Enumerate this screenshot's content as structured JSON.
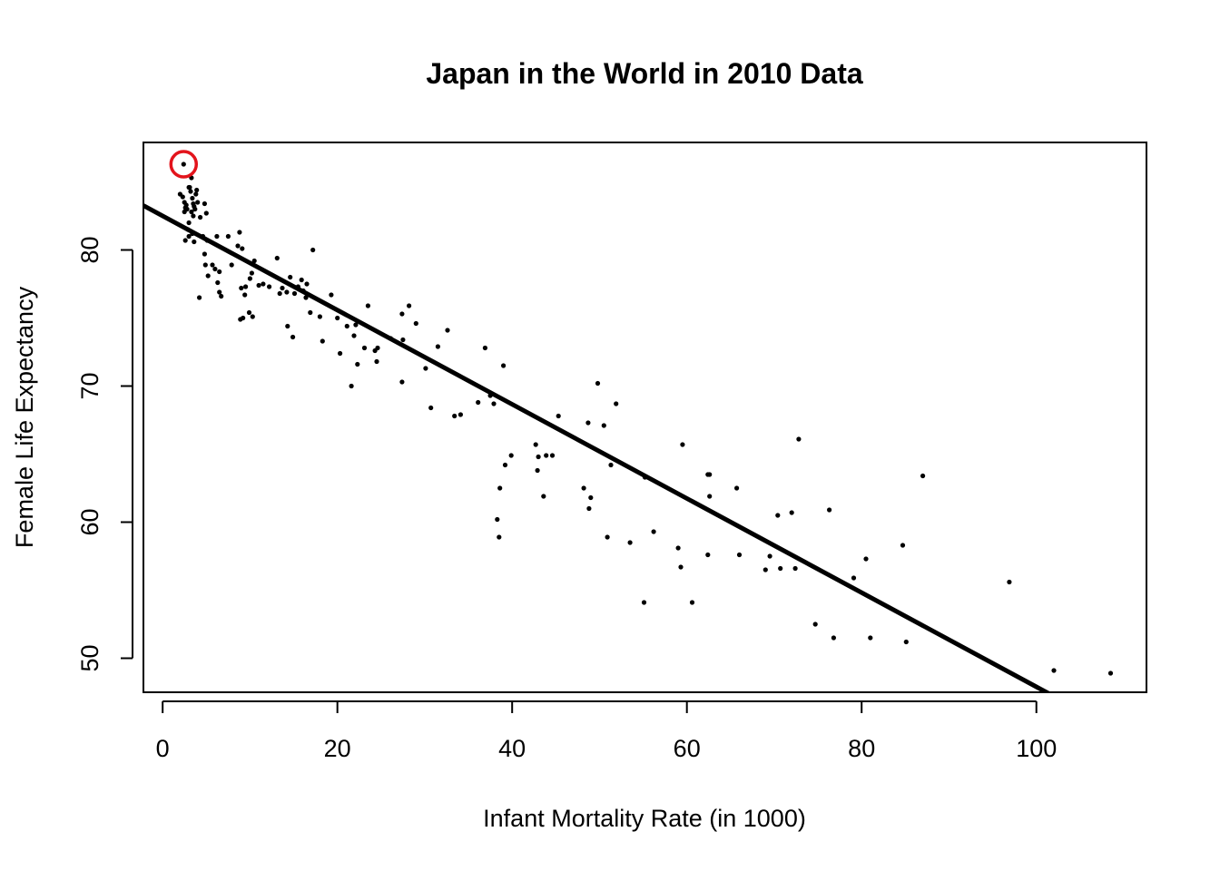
{
  "chart_data": {
    "type": "scatter",
    "title": "Japan in the World in 2010 Data",
    "xlabel": "Infant Mortality Rate (in 1000)",
    "ylabel": "Female Life Expectancy",
    "xlim": [
      -2.2,
      112.6
    ],
    "ylim": [
      47.5,
      87.9
    ],
    "xticks": [
      0,
      20,
      40,
      60,
      80,
      100
    ],
    "yticks": [
      50,
      60,
      70,
      80
    ],
    "grid": false,
    "legend": "none",
    "point_color": "#000000",
    "line_color": "#000000",
    "highlight_color": "#e3141c",
    "highlight": {
      "x": 2.4,
      "y": 86.3
    },
    "regression_line": {
      "intercept": 82.5,
      "slope": -0.346
    },
    "points": [
      [
        2.4,
        86.3
      ],
      [
        2.0,
        84.1
      ],
      [
        2.3,
        83.9
      ],
      [
        2.5,
        83.5
      ],
      [
        2.6,
        83.1
      ],
      [
        2.7,
        83.3
      ],
      [
        2.5,
        82.8
      ],
      [
        2.8,
        83.0
      ],
      [
        3.0,
        84.6
      ],
      [
        3.1,
        84.6
      ],
      [
        3.3,
        85.3
      ],
      [
        3.2,
        84.3
      ],
      [
        3.4,
        83.8
      ],
      [
        3.5,
        83.4
      ],
      [
        3.6,
        83.2
      ],
      [
        3.7,
        83.0
      ],
      [
        3.3,
        82.8
      ],
      [
        3.8,
        84.1
      ],
      [
        3.9,
        84.4
      ],
      [
        3.5,
        82.5
      ],
      [
        3.0,
        82.0
      ],
      [
        2.9,
        81.5
      ],
      [
        3.0,
        81.0
      ],
      [
        3.4,
        81.2
      ],
      [
        3.6,
        80.6
      ],
      [
        2.6,
        80.7
      ],
      [
        4.0,
        83.5
      ],
      [
        4.3,
        82.4
      ],
      [
        4.8,
        83.4
      ],
      [
        5.0,
        82.7
      ],
      [
        4.6,
        81.0
      ],
      [
        5.1,
        80.7
      ],
      [
        4.8,
        79.7
      ],
      [
        4.9,
        78.9
      ],
      [
        5.2,
        78.1
      ],
      [
        5.7,
        78.9
      ],
      [
        6.0,
        78.6
      ],
      [
        6.2,
        81.0
      ],
      [
        6.5,
        78.4
      ],
      [
        6.3,
        77.6
      ],
      [
        6.5,
        76.9
      ],
      [
        6.7,
        76.6
      ],
      [
        4.2,
        76.5
      ],
      [
        7.5,
        81.0
      ],
      [
        7.9,
        78.9
      ],
      [
        8.8,
        81.3
      ],
      [
        8.6,
        80.3
      ],
      [
        9.1,
        80.1
      ],
      [
        9.0,
        77.2
      ],
      [
        9.5,
        77.3
      ],
      [
        9.4,
        76.7
      ],
      [
        8.9,
        74.9
      ],
      [
        9.2,
        75.0
      ],
      [
        10.0,
        77.9
      ],
      [
        10.2,
        78.3
      ],
      [
        10.5,
        79.2
      ],
      [
        9.9,
        75.4
      ],
      [
        10.3,
        75.1
      ],
      [
        11.0,
        77.4
      ],
      [
        11.5,
        77.5
      ],
      [
        12.2,
        77.3
      ],
      [
        13.1,
        79.4
      ],
      [
        13.4,
        76.8
      ],
      [
        13.7,
        77.2
      ],
      [
        14.2,
        76.9
      ],
      [
        14.6,
        78.0
      ],
      [
        14.3,
        74.4
      ],
      [
        14.9,
        73.6
      ],
      [
        15.1,
        76.8
      ],
      [
        15.5,
        77.3
      ],
      [
        15.9,
        77.8
      ],
      [
        16.1,
        77.0
      ],
      [
        16.5,
        77.5
      ],
      [
        16.4,
        76.5
      ],
      [
        16.9,
        75.4
      ],
      [
        17.2,
        80.0
      ],
      [
        18.0,
        75.1
      ],
      [
        18.3,
        73.3
      ],
      [
        19.3,
        76.7
      ],
      [
        20.0,
        75.0
      ],
      [
        20.3,
        72.4
      ],
      [
        21.1,
        74.4
      ],
      [
        21.9,
        73.7
      ],
      [
        22.1,
        74.5
      ],
      [
        22.3,
        71.6
      ],
      [
        21.6,
        70.0
      ],
      [
        23.1,
        72.8
      ],
      [
        23.5,
        75.9
      ],
      [
        24.3,
        72.6
      ],
      [
        24.6,
        72.8
      ],
      [
        24.5,
        71.8
      ],
      [
        26.1,
        73.5
      ],
      [
        27.4,
        75.3
      ],
      [
        27.5,
        73.4
      ],
      [
        27.4,
        70.3
      ],
      [
        28.2,
        75.9
      ],
      [
        29.0,
        74.6
      ],
      [
        30.1,
        71.3
      ],
      [
        30.7,
        68.4
      ],
      [
        31.5,
        72.9
      ],
      [
        32.6,
        74.1
      ],
      [
        33.4,
        67.8
      ],
      [
        34.1,
        67.9
      ],
      [
        36.1,
        68.8
      ],
      [
        36.9,
        72.8
      ],
      [
        37.5,
        69.3
      ],
      [
        37.9,
        68.7
      ],
      [
        39.0,
        71.5
      ],
      [
        39.2,
        64.2
      ],
      [
        39.9,
        64.9
      ],
      [
        38.6,
        62.5
      ],
      [
        38.3,
        60.2
      ],
      [
        38.5,
        58.9
      ],
      [
        42.7,
        65.7
      ],
      [
        43.0,
        64.8
      ],
      [
        43.9,
        64.9
      ],
      [
        44.6,
        64.9
      ],
      [
        42.9,
        63.8
      ],
      [
        43.6,
        61.9
      ],
      [
        45.3,
        67.8
      ],
      [
        48.7,
        67.3
      ],
      [
        49.8,
        70.2
      ],
      [
        50.5,
        67.1
      ],
      [
        51.9,
        68.7
      ],
      [
        51.3,
        64.2
      ],
      [
        48.2,
        62.5
      ],
      [
        49.0,
        61.8
      ],
      [
        48.8,
        61.0
      ],
      [
        50.9,
        58.9
      ],
      [
        53.5,
        58.5
      ],
      [
        55.2,
        63.3
      ],
      [
        56.2,
        59.3
      ],
      [
        55.1,
        54.1
      ],
      [
        59.5,
        65.7
      ],
      [
        59.0,
        58.1
      ],
      [
        59.3,
        56.7
      ],
      [
        60.6,
        54.1
      ],
      [
        62.4,
        63.5
      ],
      [
        62.6,
        63.5
      ],
      [
        62.6,
        61.9
      ],
      [
        62.4,
        57.6
      ],
      [
        65.7,
        62.5
      ],
      [
        66.0,
        57.6
      ],
      [
        69.0,
        56.5
      ],
      [
        69.5,
        57.5
      ],
      [
        70.4,
        60.5
      ],
      [
        70.7,
        56.6
      ],
      [
        72.0,
        60.7
      ],
      [
        72.4,
        56.6
      ],
      [
        72.8,
        66.1
      ],
      [
        74.7,
        52.5
      ],
      [
        76.3,
        60.9
      ],
      [
        76.8,
        51.5
      ],
      [
        79.1,
        55.9
      ],
      [
        80.5,
        57.3
      ],
      [
        81.0,
        51.5
      ],
      [
        84.7,
        58.3
      ],
      [
        85.1,
        51.2
      ],
      [
        87.0,
        63.4
      ],
      [
        96.9,
        55.6
      ],
      [
        102.0,
        49.1
      ],
      [
        108.5,
        48.9
      ]
    ]
  }
}
